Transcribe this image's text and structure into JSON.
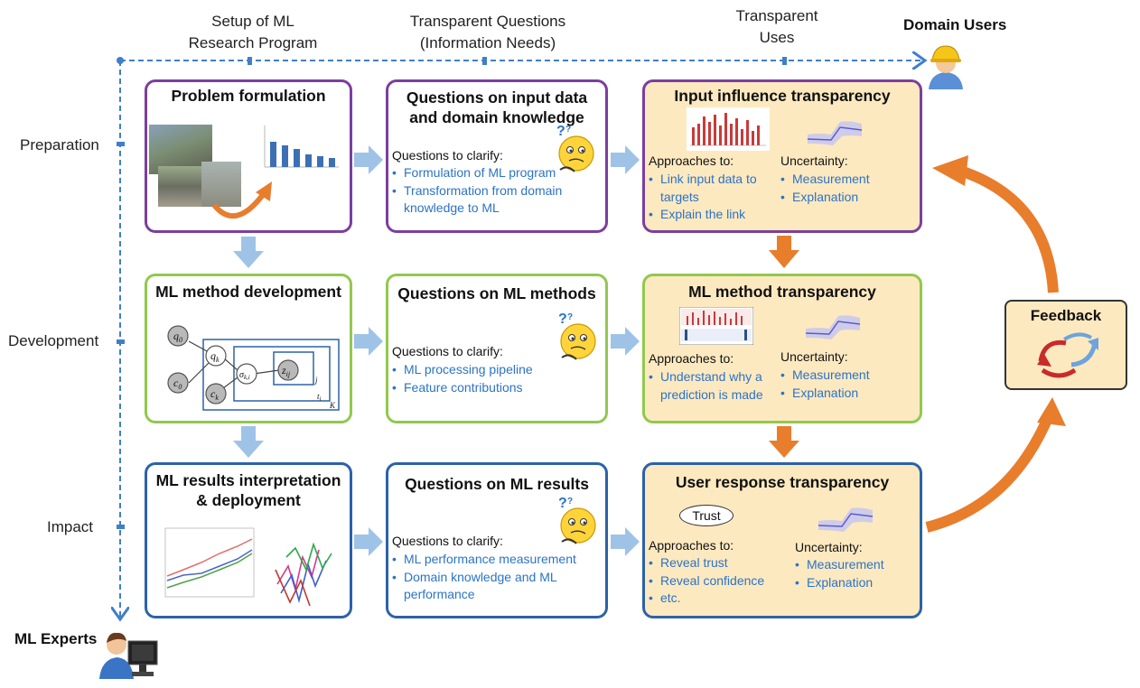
{
  "columns": {
    "setup": "Setup of ML\nResearch Program",
    "questions": "Transparent Questions\n(Information Needs)",
    "uses": "Transparent\nUses",
    "domain_users": "Domain Users"
  },
  "rows": {
    "preparation": "Preparation",
    "development": "Development",
    "impact": "Impact",
    "ml_experts": "ML Experts"
  },
  "problem_formulation": {
    "title": "Problem formulation"
  },
  "ml_method_dev": {
    "title": "ML method development",
    "nodes": {
      "q0": "q",
      "q0_sub": "0",
      "c0": "c",
      "c0_sub": "0",
      "qk": "q",
      "qk_sub": "k",
      "ck": "c",
      "ck_sub": "k",
      "sk": "σ",
      "sk_sub": "k,i",
      "zij": "z",
      "zij_sub": "ij",
      "j": "j",
      "t": "t",
      "t_sub": "i",
      "K": "K"
    }
  },
  "ml_results": {
    "title": "ML results interpretation\n& deployment"
  },
  "q_input": {
    "title": "Questions on input data\nand domain knowledge",
    "sub": "Questions to clarify:",
    "items": [
      "Formulation of ML program",
      "Transformation from domain knowledge to ML"
    ]
  },
  "q_methods": {
    "title": "Questions on ML methods",
    "sub": "Questions to clarify:",
    "items": [
      "ML processing pipeline",
      "Feature contributions"
    ]
  },
  "q_results": {
    "title": "Questions on ML results",
    "sub": "Questions to clarify:",
    "items": [
      "ML performance measurement",
      "Domain knowledge and ML performance"
    ]
  },
  "t_input": {
    "title": "Input influence transparency",
    "approaches": "Approaches to:",
    "approach_items": [
      "Link input data to targets",
      "Explain the link"
    ],
    "uncertainty": "Uncertainty:",
    "unc_items": [
      "Measurement",
      "Explanation"
    ]
  },
  "t_method": {
    "title": "ML method transparency",
    "approaches": "Approaches to:",
    "approach_items": [
      "Understand why a prediction is made"
    ],
    "uncertainty": "Uncertainty:",
    "unc_items": [
      "Measurement",
      "Explanation"
    ]
  },
  "t_user": {
    "title": "User response transparency",
    "trust": "Trust",
    "approaches": "Approaches to:",
    "approach_items": [
      "Reveal trust",
      "Reveal confidence",
      "etc."
    ],
    "uncertainty": "Uncertainty:",
    "unc_items": [
      "Measurement",
      "Explanation"
    ]
  },
  "feedback": {
    "title": "Feedback"
  },
  "colors": {
    "purple": "#7b3f9e",
    "green": "#92c84e",
    "blue_border": "#2c62a8",
    "tan_fill": "#fde9c0",
    "link_blue": "#2b73c6",
    "arrow_lightblue": "#9fc3e7",
    "arrow_orange": "#e87d2c",
    "axis_dashed": "#3f7fc8"
  },
  "icons": [
    "domain-user-hardhat-icon",
    "ml-expert-computer-icon",
    "thinking-face-icon",
    "bar-chart-thumbnail",
    "uncertainty-band-icon",
    "recycle-arrows-icon"
  ]
}
